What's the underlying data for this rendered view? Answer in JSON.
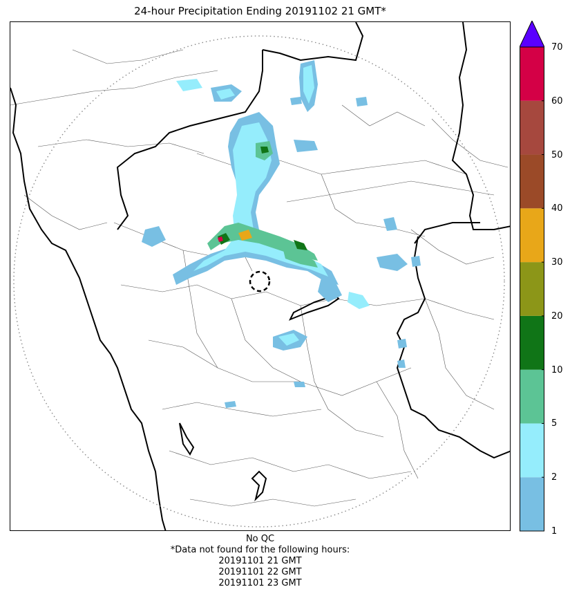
{
  "title": "24-hour Precipitation Ending 20191102 21 GMT*",
  "colorbar": {
    "ticks": [
      "1",
      "2",
      "5",
      "10",
      "20",
      "30",
      "40",
      "50",
      "60",
      "70"
    ],
    "colors": [
      "#78bfe3",
      "#95edfc",
      "#5cc495",
      "#107517",
      "#8c9618",
      "#e8a719",
      "#9b4a28",
      "#a6483e",
      "#d40046"
    ],
    "extend_color": "#5a00ff"
  },
  "footer": {
    "qc": "No QC",
    "note": "*Data not found for the following hours:",
    "hours": [
      "20191101 21 GMT",
      "20191101 22 GMT",
      "20191101 23 GMT"
    ]
  },
  "map": {
    "radar_site_marker": "dashed-circle",
    "range_ring": "dotted-circle"
  }
}
